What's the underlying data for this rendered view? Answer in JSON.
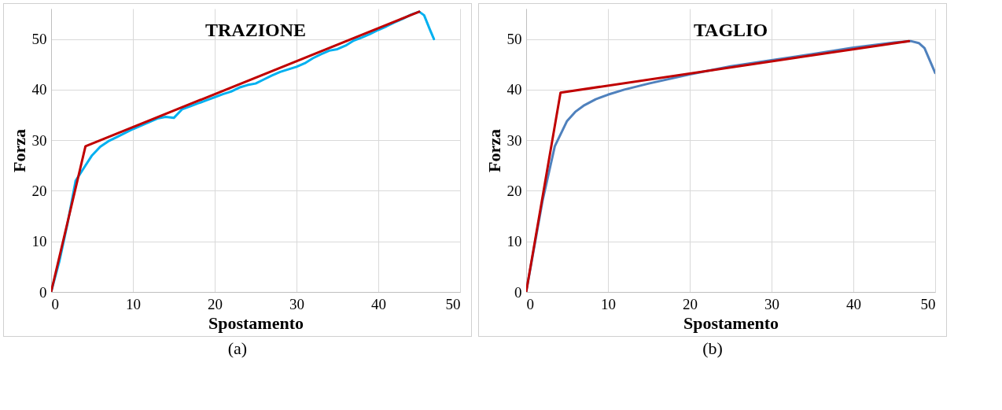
{
  "chart_data": [
    {
      "type": "line",
      "title": "TRAZIONE",
      "xlabel": "Spostamento",
      "ylabel": "Forza",
      "annotations": [
        "(a)"
      ],
      "xlim": [
        0,
        50
      ],
      "ylim": [
        0,
        56
      ],
      "xticks": [
        0,
        10,
        20,
        30,
        40,
        50
      ],
      "yticks": [
        0,
        10,
        20,
        30,
        40,
        50
      ],
      "grid": true,
      "series": [
        {
          "color": "#00b0f0",
          "x": [
            0,
            1,
            2,
            3,
            4,
            5,
            6,
            7,
            8,
            9,
            10,
            11,
            12,
            13,
            14,
            15,
            16,
            17,
            18,
            19,
            20,
            21,
            22,
            23,
            24,
            25,
            26,
            27,
            28,
            29,
            30,
            31,
            32,
            33,
            34,
            35,
            36,
            37,
            38,
            39,
            40,
            41,
            42,
            43,
            44,
            45,
            45.6,
            46.3,
            46.8
          ],
          "values": [
            0,
            6,
            13.5,
            22,
            24.5,
            27,
            28.7,
            29.8,
            30.6,
            31.4,
            32.2,
            32.9,
            33.6,
            34.3,
            34.6,
            34.4,
            36.1,
            36.7,
            37.3,
            37.9,
            38.5,
            39.1,
            39.6,
            40.4,
            40.9,
            41.2,
            42,
            42.8,
            43.5,
            44,
            44.5,
            45.2,
            46.2,
            47,
            47.7,
            48,
            48.7,
            49.7,
            50.3,
            51,
            51.8,
            52.5,
            53.3,
            54,
            54.8,
            55.4,
            54.7,
            51.9,
            50
          ]
        },
        {
          "color": "#c00000",
          "x": [
            0,
            4.2,
            45
          ],
          "values": [
            0,
            28.8,
            55.4
          ]
        }
      ]
    },
    {
      "type": "line",
      "title": "TAGLIO",
      "xlabel": "Spostamento",
      "ylabel": "Forza",
      "annotations": [
        "(b)"
      ],
      "xlim": [
        0,
        50
      ],
      "ylim": [
        0,
        56
      ],
      "xticks": [
        0,
        10,
        20,
        30,
        40,
        50
      ],
      "yticks": [
        0,
        10,
        20,
        30,
        40,
        50
      ],
      "grid": true,
      "series": [
        {
          "color": "#4f81bd",
          "x": [
            0,
            2,
            3.5,
            5,
            6,
            7,
            8.5,
            10,
            12,
            15,
            20,
            25,
            30,
            35,
            40,
            45,
            47,
            48,
            48.7,
            50
          ],
          "values": [
            0,
            18,
            28.8,
            33.8,
            35.6,
            36.8,
            38.1,
            39,
            40,
            41.2,
            43,
            44.6,
            45.8,
            47,
            48.3,
            49.3,
            49.6,
            49.2,
            48.2,
            43.3
          ]
        },
        {
          "color": "#c00000",
          "x": [
            0,
            4.2,
            46.8
          ],
          "values": [
            0,
            39.4,
            49.6
          ]
        }
      ]
    }
  ]
}
